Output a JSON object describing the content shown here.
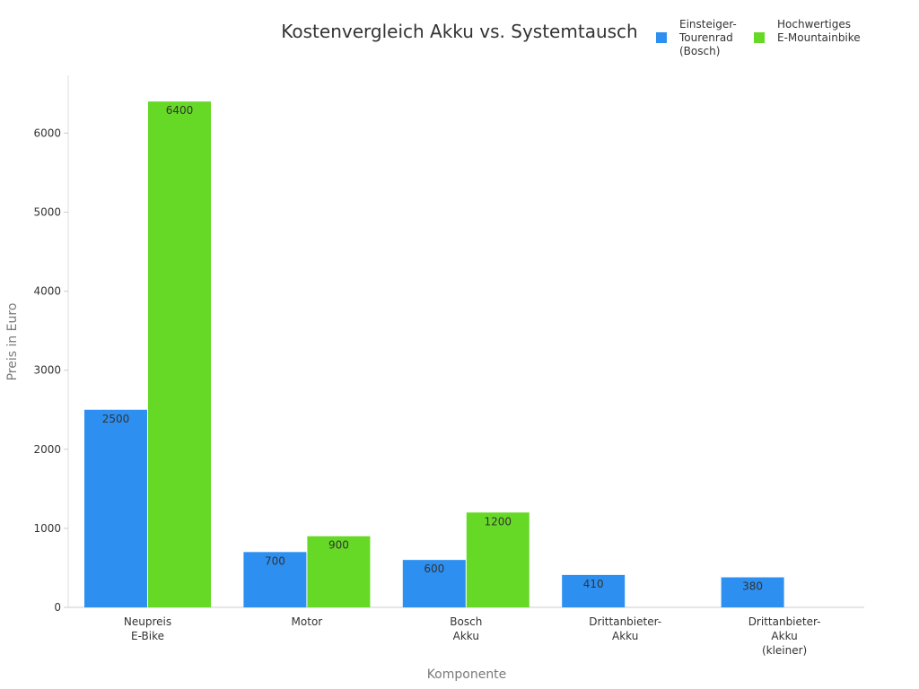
{
  "chart_data": {
    "type": "bar",
    "title": "Kostenvergleich Akku vs. Systemtausch",
    "xlabel": "Komponente",
    "ylabel": "Preis in Euro",
    "ylim": [
      0,
      6700
    ],
    "yticks": [
      0,
      1000,
      2000,
      3000,
      4000,
      5000,
      6000
    ],
    "grid": false,
    "legend_position": "top-right",
    "categories": [
      [
        "Neupreis",
        "E-Bike"
      ],
      [
        "Motor"
      ],
      [
        "Bosch",
        "Akku"
      ],
      [
        "Drittanbieter-",
        "Akku"
      ],
      [
        "Drittanbieter-",
        "Akku",
        "(kleiner)"
      ]
    ],
    "series": [
      {
        "name": [
          "Einsteiger-",
          "Tourenrad",
          "(Bosch)"
        ],
        "color": "#2d8ff0",
        "values": [
          2500,
          700,
          600,
          410,
          380
        ]
      },
      {
        "name": [
          "Hochwertiges",
          "E-Mountainbike"
        ],
        "color": "#66d926",
        "values": [
          6400,
          900,
          1200,
          null,
          null
        ]
      }
    ]
  }
}
